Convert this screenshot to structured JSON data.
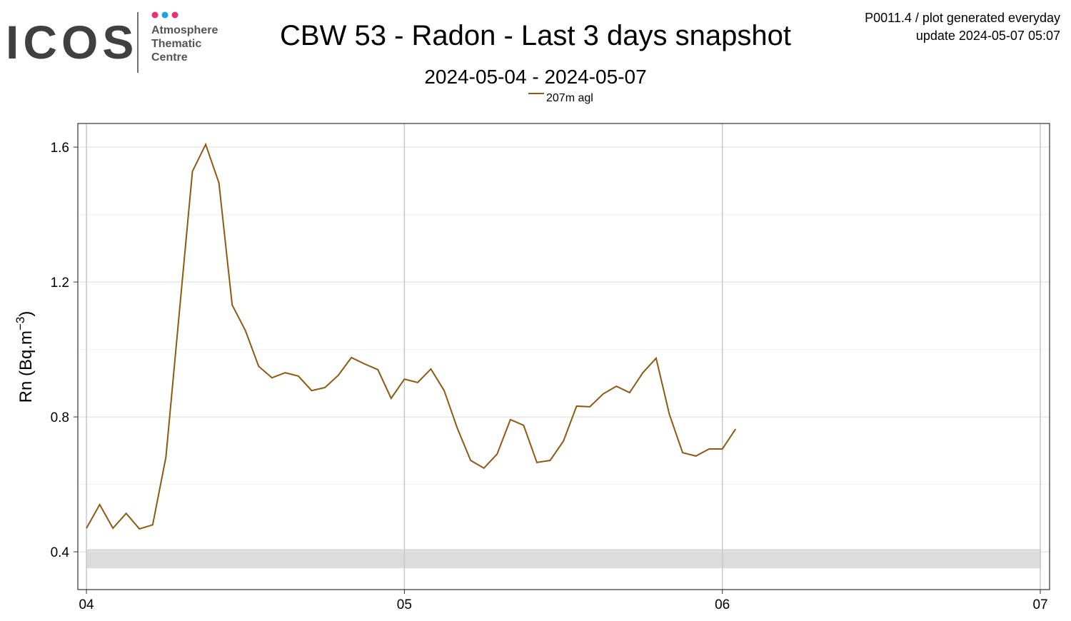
{
  "logo": {
    "name": "ICOS",
    "lines": [
      "Atmosphere",
      "Thematic",
      "Centre"
    ]
  },
  "meta": {
    "line1": "P0011.4 / plot generated everyday",
    "line2": "update  2024-05-07 05:07"
  },
  "chart_data": {
    "type": "line",
    "title": "CBW 53 - Radon - Last 3 days snapshot",
    "subtitle": "2024-05-04 - 2024-05-07",
    "ylabel": [
      "Rn (Bq.m",
      "−3",
      ")"
    ],
    "x": [
      0,
      1,
      2,
      3,
      4,
      5,
      6,
      7,
      8,
      9,
      10,
      11,
      12,
      13,
      14,
      15,
      16,
      17,
      18,
      19,
      20,
      21,
      22,
      23,
      24,
      25,
      26,
      27,
      28,
      29,
      30,
      31,
      32,
      33,
      34,
      35,
      36,
      37,
      38,
      39,
      40,
      41,
      42,
      43,
      44,
      45,
      46,
      47,
      48,
      49
    ],
    "series": [
      {
        "name": "207m agl",
        "color": "#8b5a14",
        "values": [
          0.47,
          0.54,
          0.47,
          0.514,
          0.468,
          0.48,
          0.681,
          1.105,
          1.528,
          1.608,
          1.494,
          1.132,
          1.056,
          0.95,
          0.916,
          0.931,
          0.921,
          0.878,
          0.887,
          0.923,
          0.976,
          0.957,
          0.94,
          0.855,
          0.912,
          0.902,
          0.942,
          0.878,
          0.766,
          0.671,
          0.648,
          0.69,
          0.792,
          0.775,
          0.665,
          0.671,
          0.728,
          0.832,
          0.83,
          0.868,
          0.891,
          0.872,
          0.931,
          0.974,
          0.808,
          0.694,
          0.684,
          0.705,
          0.705,
          0.764
        ]
      }
    ],
    "xlim": [
      -0.65,
      72.7
    ],
    "xticks": [
      {
        "value": 0,
        "label": "04"
      },
      {
        "value": 24,
        "label": "05"
      },
      {
        "value": 48,
        "label": "06"
      },
      {
        "value": 72,
        "label": "07"
      }
    ],
    "ylim": [
      0.288,
      1.67
    ],
    "yticks": [
      0.4,
      0.8,
      1.2,
      1.6
    ],
    "y_minor_grid": [
      0.6,
      1.0,
      1.4
    ],
    "shaded_range": [
      0.351,
      0.408
    ],
    "grid": true
  }
}
